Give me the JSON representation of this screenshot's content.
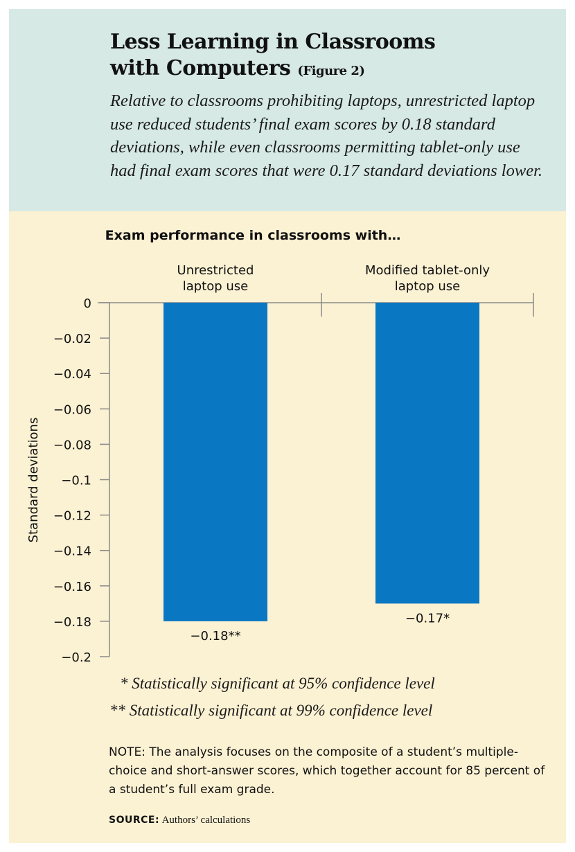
{
  "header": {
    "title_line1": "Less Learning in Classrooms",
    "title_line2": "with Computers",
    "figure_label": "(Figure 2)",
    "subtitle": "Relative to classrooms prohibiting laptops, unrestricted laptop use reduced students’ final exam scores by 0.18 standard deviations, while even classrooms permitting tablet-only use had final exam scores that were 0.17 standard deviations lower."
  },
  "chart_data": {
    "type": "bar",
    "title": "Exam performance in classrooms with…",
    "categories": [
      "Unrestricted laptop use",
      "Modified tablet-only laptop use"
    ],
    "category_lines": [
      [
        "Unrestricted",
        "laptop use"
      ],
      [
        "Modified tablet-only",
        "laptop use"
      ]
    ],
    "values": [
      -0.18,
      -0.17
    ],
    "data_labels": [
      "−0.18**",
      "−0.17*"
    ],
    "xlabel": "",
    "ylabel": "Standard deviations",
    "ylim": [
      -0.2,
      0
    ],
    "yticks": [
      0,
      -0.02,
      -0.04,
      -0.06,
      -0.08,
      -0.1,
      -0.12,
      -0.14,
      -0.16,
      -0.18,
      -0.2
    ],
    "ytick_labels": [
      "0",
      "−0.02",
      "−0.04",
      "−0.06",
      "−0.08",
      "−0.1",
      "−0.12",
      "−0.14",
      "−0.16",
      "−0.18",
      "−0.2"
    ],
    "grid": false,
    "bar_color": "#0a77c2"
  },
  "footnotes": {
    "sig95": "* Statistically significant at 95% confidence level",
    "sig99": "** Statistically  significant at 99% confidence level",
    "note": "NOTE: The analysis focuses on the composite of a student’s multiple-choice and short-answer scores, which together account for 85 percent of a student’s full exam grade.",
    "source_label": "SOURCE:",
    "source_text": "Authors’ calculations"
  },
  "colors": {
    "header_bg": "#d6e9e4",
    "chart_bg": "#fbf1d3",
    "bar": "#0a77c2",
    "axis": "#8a8a8a"
  }
}
